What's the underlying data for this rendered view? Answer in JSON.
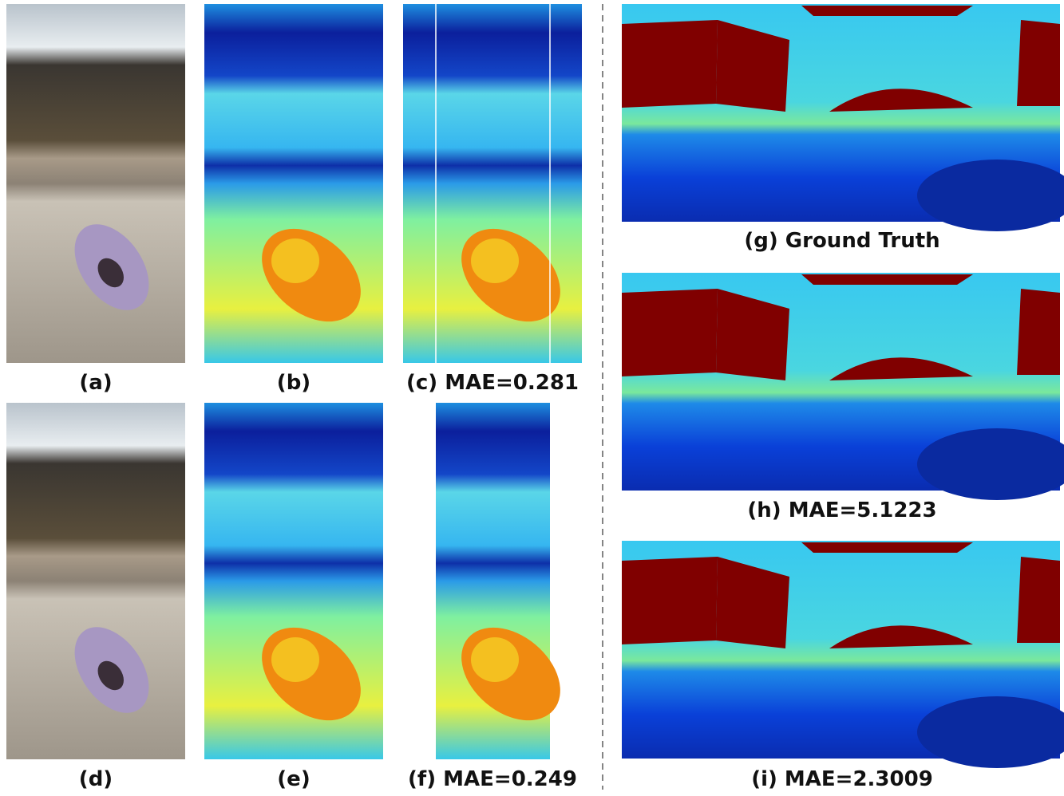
{
  "panels": [
    {
      "label": "(a)"
    },
    {
      "label": "(b)"
    },
    {
      "label": "(c) MAE=0.281"
    },
    {
      "label": "(d)"
    },
    {
      "label": "(e)"
    },
    {
      "label": "(f) MAE=0.249"
    },
    {
      "label": "(g) Ground Truth"
    },
    {
      "label": "(h) MAE=5.1223"
    },
    {
      "label": "(i) MAE=2.3009"
    }
  ]
}
